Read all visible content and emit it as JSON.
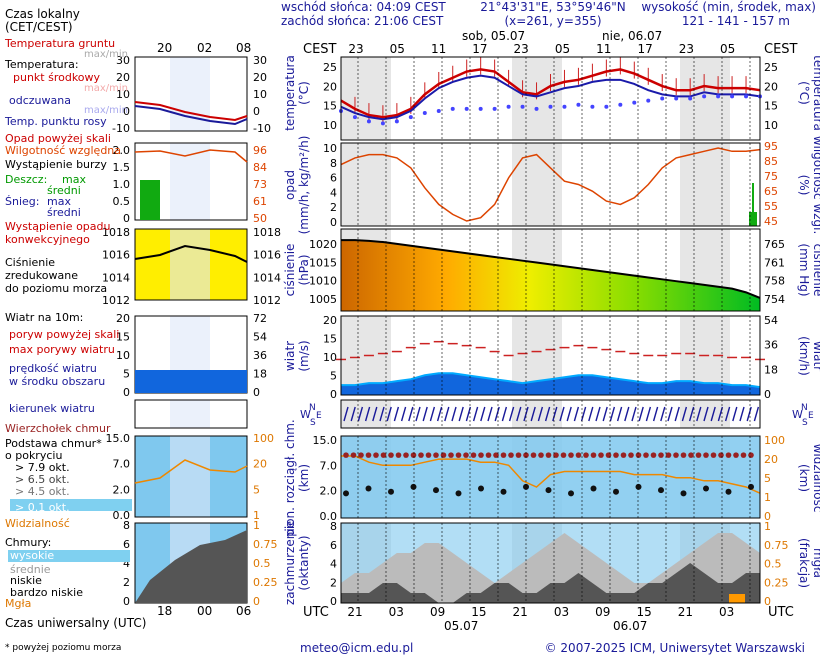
{
  "header": {
    "sunrise": "wschód słońca: 04:09 CEST",
    "sunset": "zachód słońca: 21:06 CEST",
    "coords": "21°43'31\"E, 53°59'46\"N",
    "grid": "(x=261,  y=355)",
    "altitude_title": "wysokość (min, środek, max)",
    "altitude_values": "121 - 141 - 157 m"
  },
  "legend": {
    "local_time": "Czas lokalny",
    "local_time_zone": "(CET/CEST)",
    "local_ticks": [
      "20",
      "02",
      "08"
    ],
    "soil_temp": "Temperatura gruntu",
    "max_min_1": "max/min",
    "temperature": "Temperatura:",
    "mid_point": "punkt środkowy",
    "max_min_2": "max/min",
    "feels_like": "odczuwana",
    "max_min_3": "max/min",
    "dew_point": "Temp. punktu rosy",
    "precip_above": "Opad powyżej skali",
    "humidity": "Wilgotność względna",
    "storm": "Wystąpienie burzy",
    "rain": "Deszcz:",
    "rain_max": "max",
    "rain_mean": "średni",
    "snow": "Śnieg:",
    "snow_max": "max",
    "snow_mean": "średni",
    "convective": "Wystąpienie opadu",
    "convective2": "konwekcyjnego",
    "pressure1": "Ciśnienie",
    "pressure2": "zredukowane",
    "pressure3": "do poziomu morza",
    "wind_title": "Wiatr na 10m:",
    "gust_above": "poryw powyżej skali",
    "gust_max": "max porywy wiatru",
    "wind_speed": "prędkość wiatru",
    "wind_speed2": "w środku obszaru",
    "wind_dir": "kierunek wiatru",
    "cloud_top": "Wierzchołek chmur",
    "cloud_base": "Podstawa chmur*",
    "coverage": "o pokryciu",
    "okt": [
      "> 7.9 okt.",
      "> 6.5 okt.",
      "> 4.5 okt.",
      "> 2.5 okt.",
      "> 0.1 okt."
    ],
    "visibility": "Widzialność",
    "clouds": "Chmury:",
    "cloud_high": "wysokie",
    "cloud_mid": "średnie",
    "cloud_low": "niskie",
    "cloud_very_low": "bardzo niskie",
    "fog": "Mgła",
    "utc_label": "Czas uniwersalny (UTC)",
    "utc_ticks": [
      "18",
      "00",
      "06"
    ],
    "footnote": "* powyżej poziomu morza"
  },
  "axes": {
    "cest": "CEST",
    "utc": "UTC",
    "day1": "sob, 05.07",
    "day2": "nie, 06.07",
    "date1": "05.07",
    "date2": "06.07",
    "temp_label": "temperatura",
    "temp_unit": "(°C)",
    "precip_label": "opad",
    "precip_unit": "(mm/h, kg/m²/h)",
    "humidity_label": "wilgotność wzgl.",
    "humidity_unit": "(%)",
    "pressure_label": "ciśnienie",
    "pressure_unit": "(hPa)",
    "pressure_unit2": "(mm Hg)",
    "pressure_label2": "ciśnienie",
    "wind_label": "wiatr",
    "wind_unit": "(m/s)",
    "wind_unit2": "(km/h)",
    "wind_label2": "wiatr",
    "cloud_base_label": "pion. rozciągł. chm.",
    "cloud_base_unit": "(km)",
    "vis_label": "widzialność",
    "vis_unit": "(km)",
    "cover_label": "zachmurzenie",
    "cover_unit": "(oktanty)",
    "fog_label": "mgła",
    "fog_unit": "(frakcja)",
    "compass_n": "N",
    "compass_w": "W",
    "compass_e": "E",
    "compass_s": "S"
  },
  "footer": {
    "email": "meteo@icm.edu.pl",
    "copyright": "© 2007-2025 ICM, Uniwersytet Warszawski"
  },
  "chart_data": {
    "type": "line",
    "time_utc_hours": [
      18,
      20,
      22,
      0,
      2,
      4,
      6,
      8,
      10,
      12,
      14,
      16,
      18,
      20,
      22,
      0,
      2,
      4,
      6,
      8,
      10,
      12,
      14,
      16,
      18,
      20,
      22,
      0,
      2,
      4,
      6
    ],
    "cest_ticks": [
      "23",
      "05",
      "11",
      "17",
      "23",
      "05",
      "11",
      "17",
      "23",
      "05"
    ],
    "utc_ticks": [
      "21",
      "03",
      "09",
      "15",
      "21",
      "03",
      "09",
      "15",
      "21",
      "03"
    ],
    "series": [
      {
        "name": "punkt środkowy",
        "values": [
          14.5,
          12.5,
          11,
          10.5,
          11,
          12.5,
          16,
          18.5,
          20,
          21.5,
          22,
          21.5,
          19,
          16.5,
          16,
          18,
          19,
          19.5,
          20.5,
          21.5,
          22,
          21,
          19.5,
          18,
          17,
          17,
          18,
          17.5,
          17.5,
          17.5,
          17
        ]
      },
      {
        "name": "odczuwana",
        "values": [
          13,
          11.5,
          10.5,
          10,
          10.5,
          12,
          15,
          17.5,
          19,
          20,
          20.5,
          20,
          18,
          16,
          15.5,
          16.5,
          17.5,
          18,
          19,
          19.5,
          19.5,
          18.5,
          17,
          16,
          15.5,
          15.5,
          16.5,
          16,
          16,
          16,
          15.5
        ]
      },
      {
        "name": "Temp. punktu rosy",
        "values": [
          12,
          10.5,
          9.5,
          9,
          9.5,
          10.5,
          11.5,
          12,
          12.5,
          12.5,
          12.5,
          12.5,
          13,
          13,
          12.5,
          13,
          13,
          13.5,
          13,
          13,
          13.5,
          14,
          14.5,
          15,
          15,
          15,
          15.5,
          15.5,
          15.5,
          15.5,
          15.5
        ]
      },
      {
        "name": "Wilgotność względna",
        "values": [
          82,
          86,
          88,
          88,
          86,
          80,
          68,
          58,
          52,
          48,
          50,
          58,
          74,
          86,
          88,
          80,
          72,
          70,
          66,
          60,
          58,
          62,
          70,
          80,
          86,
          88,
          90,
          92,
          90,
          90,
          91
        ]
      },
      {
        "name": "Ciśnienie",
        "values": [
          1021,
          1021,
          1020.8,
          1020.5,
          1020,
          1019.5,
          1019,
          1018.5,
          1018,
          1017.5,
          1017,
          1016.5,
          1016,
          1015.5,
          1015,
          1014.5,
          1014,
          1013.5,
          1013,
          1012.5,
          1012,
          1011.5,
          1011,
          1010.5,
          1010,
          1009.5,
          1009,
          1008.5,
          1008,
          1007,
          1005.5
        ]
      },
      {
        "name": "prędkość wiatru",
        "values": [
          2.5,
          2.5,
          3,
          3,
          3.5,
          4,
          5,
          5.5,
          5.5,
          5,
          4.5,
          4,
          3.5,
          3,
          3.5,
          4,
          4.5,
          5,
          5,
          4.5,
          4,
          3.5,
          3,
          3,
          3.5,
          3.5,
          3,
          3,
          2.5,
          2.5,
          2
        ]
      },
      {
        "name": "max porywy wiatru",
        "values": [
          9,
          9.5,
          10,
          10.5,
          11,
          12,
          13,
          13.5,
          13,
          12.5,
          12,
          11,
          10,
          10.5,
          11,
          11.5,
          12,
          12.5,
          12,
          11.5,
          11,
          10.5,
          10,
          10,
          10.5,
          10.5,
          10,
          10,
          9.5,
          9.5,
          9
        ]
      },
      {
        "name": "Widzialność",
        "values": [
          20,
          20,
          18,
          17,
          17,
          17,
          18,
          19,
          19,
          19,
          18,
          18,
          17,
          12,
          10,
          14,
          15,
          15,
          15,
          15,
          15,
          14,
          14,
          14,
          13,
          13,
          12,
          12,
          11,
          10,
          8
        ]
      }
    ],
    "ylim_temp": [
      5,
      25
    ],
    "ylim_precip": [
      0,
      10
    ],
    "ylim_humidity": [
      45,
      95
    ],
    "ylim_pressure": [
      1002,
      1024
    ],
    "ylim_wind": [
      0,
      20
    ],
    "ylim_cloud": [
      0,
      15
    ],
    "ylim_cover": [
      0,
      8
    ],
    "temp_ticks_left": [
      "25",
      "20",
      "15",
      "10"
    ],
    "precip_ticks_left": [
      "10",
      "8",
      "6",
      "4",
      "2",
      "0"
    ],
    "humidity_ticks": [
      "95",
      "85",
      "75",
      "65",
      "55",
      "45"
    ],
    "pressure_ticks": [
      "1020",
      "1015",
      "1010",
      "1005"
    ],
    "pressure_ticks_mmhg": [
      "765",
      "761",
      "758",
      "754"
    ],
    "wind_ticks": [
      "20",
      "15",
      "10",
      "5",
      "0"
    ],
    "wind_ticks_kmh": [
      "54",
      "36",
      "18",
      "0"
    ],
    "cloud_ticks": [
      "15.0",
      "7.0",
      "2.0",
      "0.0"
    ],
    "vis_ticks": [
      "100",
      "20",
      "5",
      "1",
      "0"
    ],
    "cover_ticks": [
      "8",
      "6",
      "4",
      "2",
      "0"
    ],
    "fog_ticks": [
      "1",
      "0.75",
      "0.5",
      "0.25",
      "0"
    ],
    "legend_panel": {
      "temp_ticks": [
        "30",
        "20",
        "10",
        "0",
        "-10"
      ],
      "precip_ticks": [
        "2.0",
        "1.5",
        "1.0",
        "0.5",
        "0"
      ],
      "humidity_ticks": [
        "96",
        "84",
        "73",
        "61",
        "50"
      ],
      "pressure_ticks": [
        "1018",
        "1016",
        "1014",
        "1012"
      ],
      "wind_ticks": [
        "20",
        "15",
        "10",
        "5",
        "0"
      ],
      "wind_ticks_kmh": [
        "72",
        "54",
        "36",
        "18",
        "0"
      ],
      "cloud_ticks": [
        "15.0",
        "7.0",
        "2.0",
        "0.0"
      ],
      "vis_ticks": [
        "100",
        "20",
        "5",
        "1",
        "0"
      ],
      "cover_ticks": [
        "8",
        "6",
        "4",
        "2",
        "0"
      ],
      "fog_ticks": [
        "1",
        "0.75",
        "0.5",
        "0.25",
        "0"
      ]
    },
    "colors": {
      "temp": "#cc0000",
      "feels": "#1a1aaa",
      "dew": "#4444ff",
      "humidity": "#dd4400",
      "pressure": "#000000",
      "night": "#e6e6e6",
      "wind_band": "#0055cc"
    }
  }
}
